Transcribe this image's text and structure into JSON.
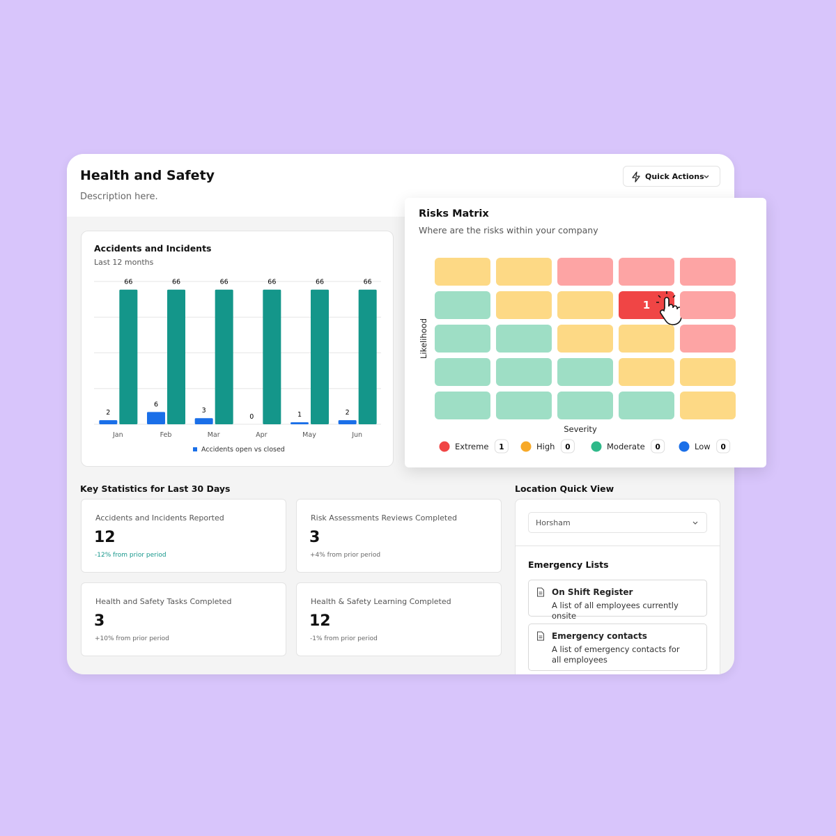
{
  "header": {
    "title": "Health and Safety",
    "description": "Description here.",
    "quick_actions": "Quick Actions"
  },
  "chart_data": {
    "type": "bar",
    "title": "Accidents and Incidents",
    "subtitle": "Last 12 months",
    "categories": [
      "Jan",
      "Feb",
      "Mar",
      "Apr",
      "May",
      "Jun"
    ],
    "series": [
      {
        "name": "Accidents open vs closed",
        "color": "#1a6fe8",
        "values": [
          2,
          6,
          3,
          0,
          1,
          2
        ]
      },
      {
        "color": "#14968a",
        "values": [
          66,
          66,
          66,
          66,
          66,
          66
        ]
      }
    ],
    "ylim": [
      0,
      70
    ],
    "yticks": [
      0,
      17.5,
      35,
      52.5,
      70
    ],
    "grid": true,
    "legend": "bottom"
  },
  "risk_matrix": {
    "title": "Risks Matrix",
    "subtitle": "Where are the risks within your company",
    "x_label": "Severity",
    "y_label": "Likelihood",
    "levels": [
      {
        "label": "Extreme",
        "color": "#f04545",
        "tint": "#fda4a4",
        "count": 1
      },
      {
        "label": "High",
        "color": "#f7a928",
        "tint": "#fdd985",
        "count": 0
      },
      {
        "label": "Moderate",
        "color": "#2fb98a",
        "tint": "#9edec5",
        "count": 0
      },
      {
        "label": "Low",
        "color": "#1a6fe8",
        "tint": "#a9c8f7",
        "count": 0
      }
    ],
    "cells": [
      [
        1,
        1,
        0,
        0,
        0
      ],
      [
        2,
        1,
        1,
        0,
        0
      ],
      [
        2,
        2,
        1,
        1,
        0
      ],
      [
        2,
        2,
        2,
        1,
        1
      ],
      [
        2,
        2,
        2,
        2,
        1
      ]
    ],
    "cell_counts": [
      [
        null,
        null,
        null,
        null,
        null
      ],
      [
        null,
        null,
        null,
        1,
        null
      ],
      [
        null,
        null,
        null,
        null,
        null
      ],
      [
        null,
        null,
        null,
        null,
        null
      ],
      [
        null,
        null,
        null,
        null,
        null
      ]
    ]
  },
  "key_statistics": {
    "title": "Key Statistics for Last 30 Days",
    "cards": [
      {
        "label": "Accidents and Incidents Reported",
        "value": 12,
        "change": "-12% from prior period",
        "change_color": "#14968a"
      },
      {
        "label": "Risk Assessments Reviews Completed",
        "value": 3,
        "change": "+4% from prior period",
        "change_color": "#666666"
      },
      {
        "label": "Health and Safety Tasks Completed",
        "value": 3,
        "change": "+10% from prior period",
        "change_color": "#666666"
      },
      {
        "label": "Health & Safety Learning Completed",
        "value": 12,
        "change": "-1% from prior period",
        "change_color": "#666666"
      }
    ]
  },
  "location": {
    "title": "Location Quick View",
    "selected": "Horsham",
    "emergency_title": "Emergency Lists",
    "items": [
      {
        "title": "On Shift Register",
        "description": "A list of all employees currently onsite"
      },
      {
        "title": "Emergency contacts",
        "description": "A list of emergency contacts for all employees"
      }
    ]
  }
}
